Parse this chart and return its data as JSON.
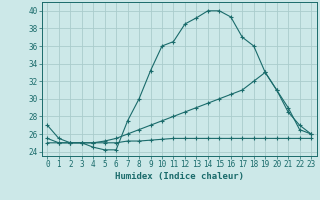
{
  "xlabel": "Humidex (Indice chaleur)",
  "background_color": "#cce8e8",
  "grid_color": "#aacccc",
  "line_color": "#1a6b6b",
  "xlim": [
    -0.5,
    23.5
  ],
  "ylim": [
    23.5,
    41.0
  ],
  "xticks": [
    0,
    1,
    2,
    3,
    4,
    5,
    6,
    7,
    8,
    9,
    10,
    11,
    12,
    13,
    14,
    15,
    16,
    17,
    18,
    19,
    20,
    21,
    22,
    23
  ],
  "yticks": [
    24,
    26,
    28,
    30,
    32,
    34,
    36,
    38,
    40
  ],
  "curve1_x": [
    0,
    1,
    2,
    3,
    4,
    5,
    6,
    7,
    8,
    9,
    10,
    11,
    12,
    13,
    14,
    15,
    16,
    17,
    18,
    19,
    20,
    21,
    22,
    23
  ],
  "curve1_y": [
    27.0,
    25.5,
    25.0,
    25.0,
    24.5,
    24.2,
    24.2,
    27.5,
    30.0,
    33.2,
    36.0,
    36.5,
    38.5,
    39.2,
    40.0,
    40.0,
    39.3,
    37.0,
    36.0,
    33.0,
    31.0,
    28.5,
    27.0,
    26.0
  ],
  "curve2_x": [
    0,
    1,
    2,
    3,
    4,
    5,
    6,
    7,
    8,
    9,
    10,
    11,
    12,
    13,
    14,
    15,
    16,
    17,
    18,
    19,
    20,
    21,
    22,
    23
  ],
  "curve2_y": [
    25.5,
    25.0,
    25.0,
    25.0,
    25.0,
    25.2,
    25.5,
    26.0,
    26.5,
    27.0,
    27.5,
    28.0,
    28.5,
    29.0,
    29.5,
    30.0,
    30.5,
    31.0,
    32.0,
    33.0,
    31.0,
    29.0,
    26.5,
    26.0
  ],
  "curve3_x": [
    0,
    1,
    2,
    3,
    4,
    5,
    6,
    7,
    8,
    9,
    10,
    11,
    12,
    13,
    14,
    15,
    16,
    17,
    18,
    19,
    20,
    21,
    22,
    23
  ],
  "curve3_y": [
    25.0,
    25.0,
    25.0,
    25.0,
    25.0,
    25.0,
    25.0,
    25.2,
    25.2,
    25.3,
    25.4,
    25.5,
    25.5,
    25.5,
    25.5,
    25.5,
    25.5,
    25.5,
    25.5,
    25.5,
    25.5,
    25.5,
    25.5,
    25.5
  ],
  "tick_fontsize": 5.5,
  "xlabel_fontsize": 6.5
}
